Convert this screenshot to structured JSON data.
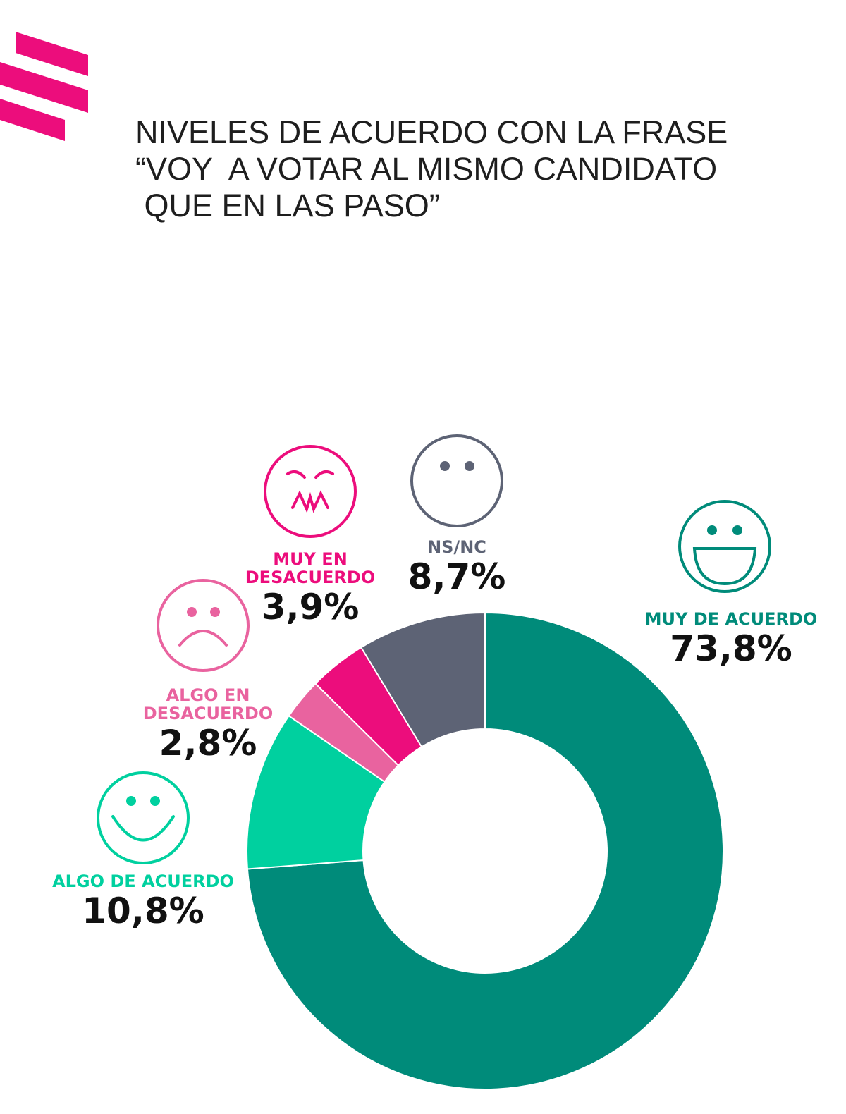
{
  "chart_data": {
    "type": "donut",
    "title": [
      "NIVELES DE ACUERDO CON LA FRASE",
      "“VOY  A VOTAR AL MISMO CANDIDATO",
      " QUE EN LAS PASO”"
    ],
    "categories": [
      "MUY DE ACUERDO",
      "ALGO DE ACUERDO",
      "ALGO EN DESACUERDO",
      "MUY EN DESACUERDO",
      "NS/NC"
    ],
    "values": [
      73.8,
      10.8,
      2.8,
      3.9,
      8.7
    ],
    "value_labels": [
      "73,8%",
      "10,8%",
      "2,8%",
      "3,9%",
      "8,7%"
    ],
    "colors": [
      "#008b7a",
      "#00d09f",
      "#e9639f",
      "#ec0d7c",
      "#5d6375"
    ]
  }
}
